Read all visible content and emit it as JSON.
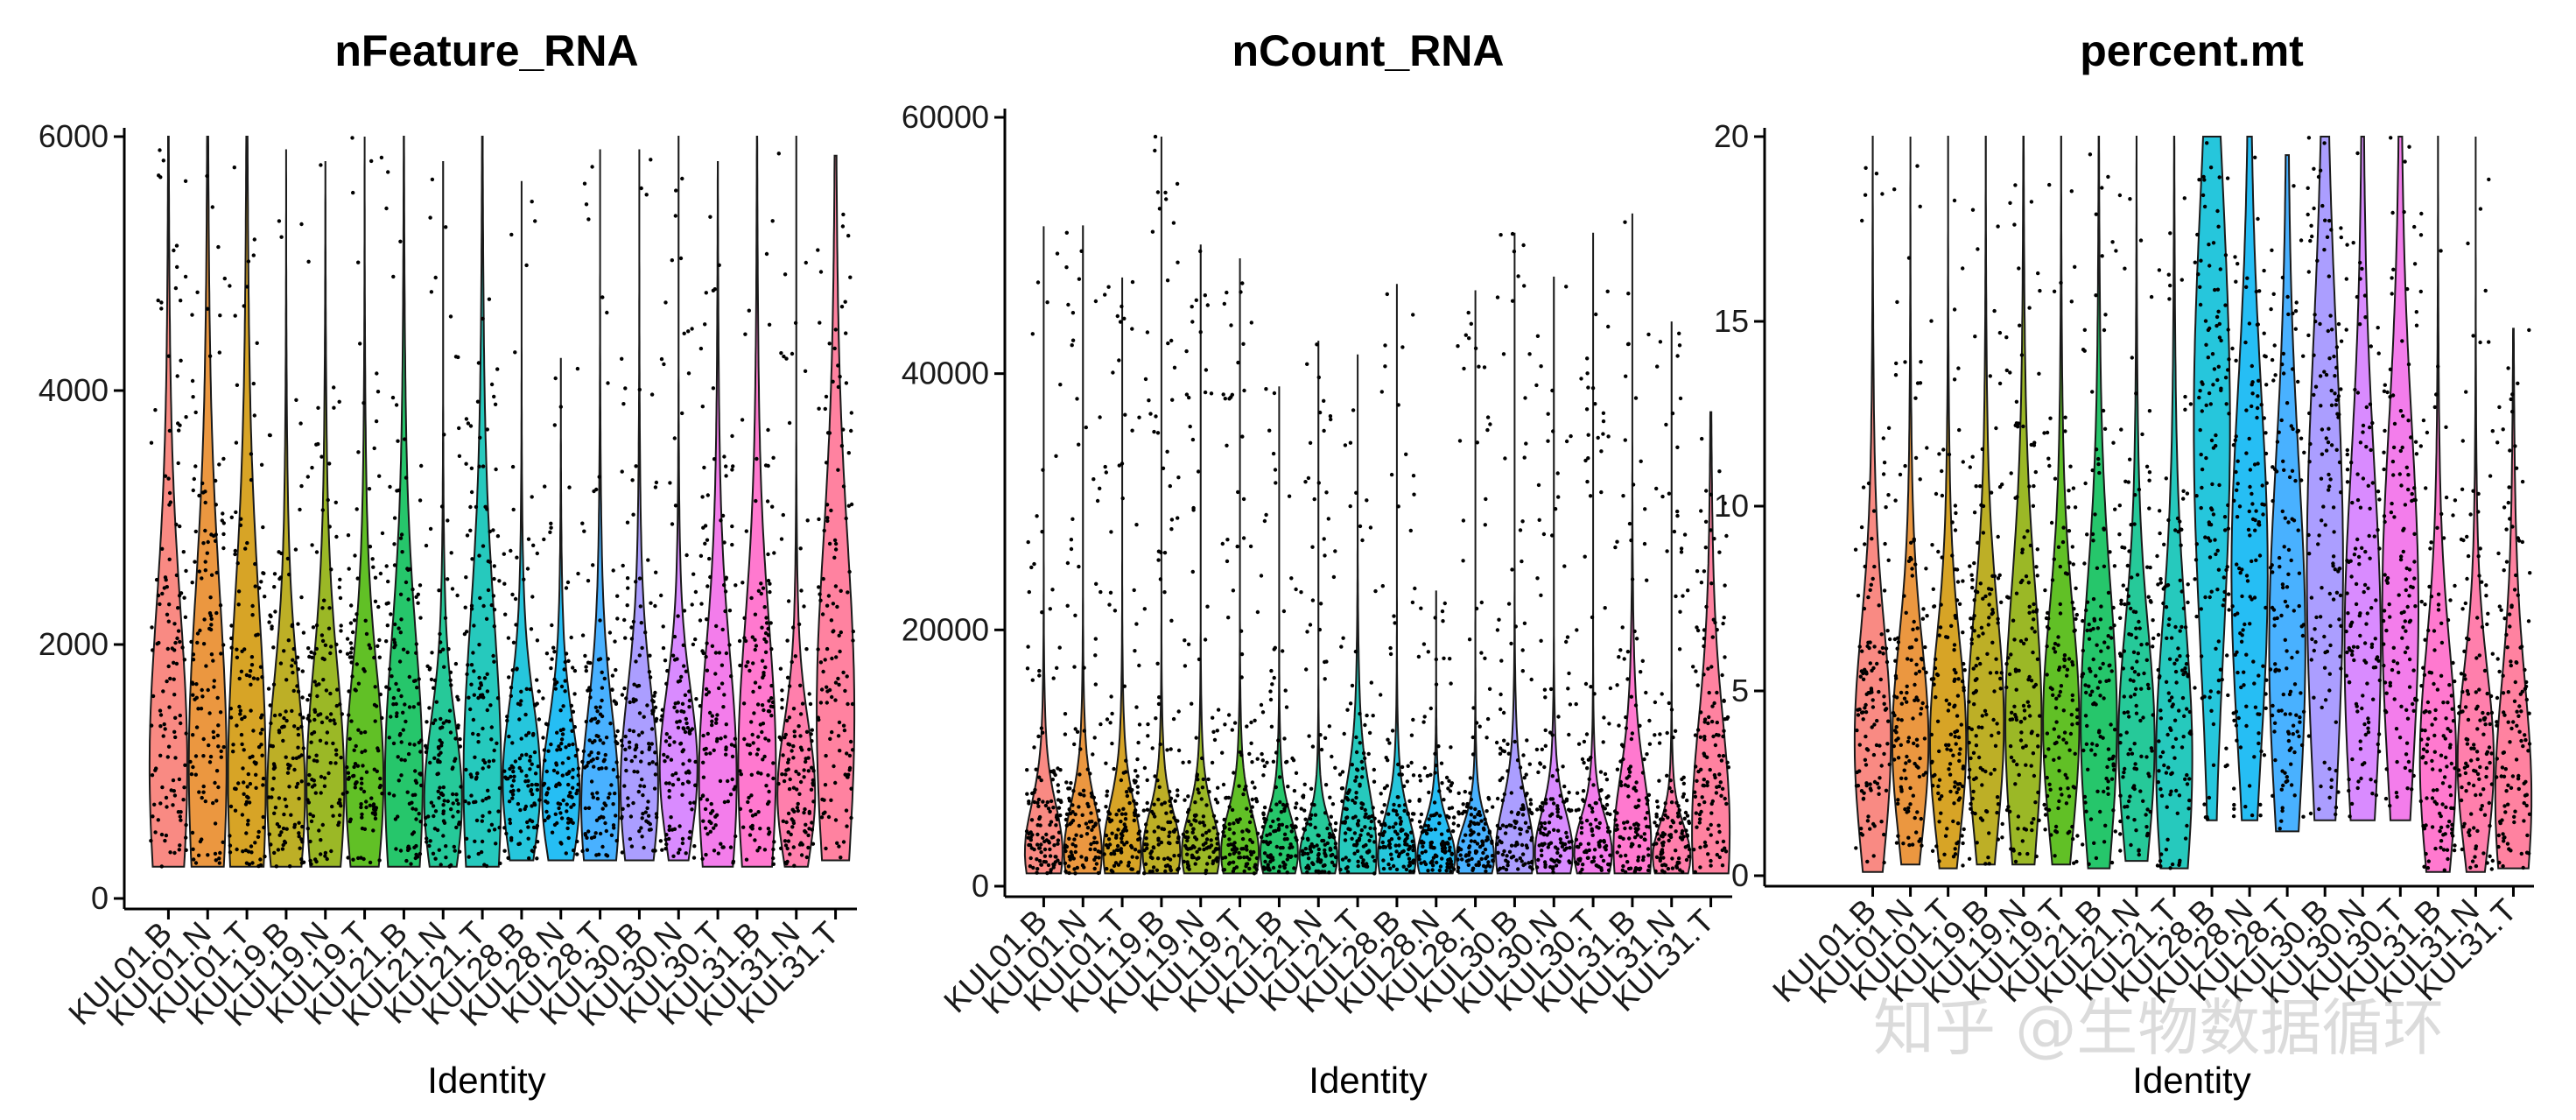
{
  "chart_data": [
    {
      "type": "violin",
      "title": "nFeature_RNA",
      "xlabel": "Identity",
      "ylabel": "",
      "ylim": [
        0,
        6000
      ],
      "yticks": [
        0,
        2000,
        4000,
        6000
      ],
      "categories": [
        "KUL01.B",
        "KUL01.N",
        "KUL01.T",
        "KUL19.B",
        "KUL19.N",
        "KUL19.T",
        "KUL21.B",
        "KUL21.N",
        "KUL21.T",
        "KUL28.B",
        "KUL28.N",
        "KUL28.T",
        "KUL30.B",
        "KUL30.N",
        "KUL30.T",
        "KUL31.B",
        "KUL31.N",
        "KUL31.T"
      ],
      "colors": [
        "#F8766D",
        "#E7851E",
        "#D09400",
        "#B2A100",
        "#89AC00",
        "#45B500",
        "#00BC51",
        "#00C087",
        "#00C0B2",
        "#00BCD6",
        "#00B3F2",
        "#29A3FF",
        "#9C8DFF",
        "#D277FF",
        "#F166E8",
        "#FF61C7",
        "#FF689E",
        "#FF6C8F"
      ],
      "series": [
        {
          "name": "KUL01.B",
          "min": 250,
          "median": 1000,
          "q3": 2000,
          "max": 6000,
          "peak": 1000
        },
        {
          "name": "KUL01.N",
          "min": 250,
          "median": 1100,
          "q3": 2200,
          "max": 6000,
          "peak": 1000
        },
        {
          "name": "KUL01.T",
          "min": 250,
          "median": 1200,
          "q3": 2300,
          "max": 6000,
          "peak": 900
        },
        {
          "name": "KUL19.B",
          "min": 250,
          "median": 900,
          "q3": 1600,
          "max": 5900,
          "peak": 800
        },
        {
          "name": "KUL19.N",
          "min": 250,
          "median": 950,
          "q3": 1700,
          "max": 5800,
          "peak": 850
        },
        {
          "name": "KUL19.T",
          "min": 250,
          "median": 1000,
          "q3": 1700,
          "max": 6000,
          "peak": 900
        },
        {
          "name": "KUL21.B",
          "min": 250,
          "median": 1000,
          "q3": 1900,
          "max": 6000,
          "peak": 900
        },
        {
          "name": "KUL21.N",
          "min": 250,
          "median": 800,
          "q3": 1300,
          "max": 5800,
          "peak": 750
        },
        {
          "name": "KUL21.T",
          "min": 250,
          "median": 1000,
          "q3": 2000,
          "max": 6000,
          "peak": 900
        },
        {
          "name": "KUL28.B",
          "min": 300,
          "median": 900,
          "q3": 1400,
          "max": 5650,
          "peak": 900
        },
        {
          "name": "KUL28.N",
          "min": 300,
          "median": 850,
          "q3": 1300,
          "max": 4250,
          "peak": 800
        },
        {
          "name": "KUL28.T",
          "min": 300,
          "median": 800,
          "q3": 1400,
          "max": 5900,
          "peak": 700
        },
        {
          "name": "KUL30.B",
          "min": 300,
          "median": 900,
          "q3": 1500,
          "max": 5900,
          "peak": 850
        },
        {
          "name": "KUL30.N",
          "min": 300,
          "median": 1000,
          "q3": 1500,
          "max": 6000,
          "peak": 1000
        },
        {
          "name": "KUL30.T",
          "min": 250,
          "median": 1000,
          "q3": 1800,
          "max": 5800,
          "peak": 900
        },
        {
          "name": "KUL31.B",
          "min": 250,
          "median": 1100,
          "q3": 2000,
          "max": 6000,
          "peak": 1000
        },
        {
          "name": "KUL31.N",
          "min": 250,
          "median": 850,
          "q3": 1300,
          "max": 6000,
          "peak": 800
        },
        {
          "name": "KUL31.T",
          "min": 300,
          "median": 1500,
          "q3": 2600,
          "max": 5850,
          "peak": 1400
        }
      ]
    },
    {
      "type": "violin",
      "title": "nCount_RNA",
      "xlabel": "Identity",
      "ylabel": "",
      "ylim": [
        0,
        60000
      ],
      "yticks": [
        0,
        20000,
        40000,
        60000
      ],
      "categories": [
        "KUL01.B",
        "KUL01.N",
        "KUL01.T",
        "KUL19.B",
        "KUL19.N",
        "KUL19.T",
        "KUL21.B",
        "KUL21.N",
        "KUL21.T",
        "KUL28.B",
        "KUL28.N",
        "KUL28.T",
        "KUL30.B",
        "KUL30.N",
        "KUL30.T",
        "KUL31.B",
        "KUL31.N",
        "KUL31.T"
      ],
      "colors": [
        "#F8766D",
        "#E7851E",
        "#D09400",
        "#B2A100",
        "#89AC00",
        "#45B500",
        "#00BC51",
        "#00C087",
        "#00C0B2",
        "#00BCD6",
        "#00B3F2",
        "#29A3FF",
        "#9C8DFF",
        "#D277FF",
        "#F166E8",
        "#FF61C7",
        "#FF689E",
        "#FF6C8F"
      ],
      "series": [
        {
          "name": "KUL01.B",
          "min": 1000,
          "median": 3000,
          "q3": 6000,
          "max": 51500,
          "peak": 2500
        },
        {
          "name": "KUL01.N",
          "min": 1000,
          "median": 3000,
          "q3": 6000,
          "max": 51500,
          "peak": 2500
        },
        {
          "name": "KUL01.T",
          "min": 1000,
          "median": 3000,
          "q3": 6000,
          "max": 47500,
          "peak": 2500
        },
        {
          "name": "KUL19.B",
          "min": 1000,
          "median": 3000,
          "q3": 5500,
          "max": 58500,
          "peak": 2500
        },
        {
          "name": "KUL19.N",
          "min": 1000,
          "median": 3000,
          "q3": 5500,
          "max": 50000,
          "peak": 2500
        },
        {
          "name": "KUL19.T",
          "min": 1000,
          "median": 3000,
          "q3": 5500,
          "max": 49000,
          "peak": 2500
        },
        {
          "name": "KUL21.B",
          "min": 1000,
          "median": 2800,
          "q3": 5000,
          "max": 39000,
          "peak": 2500
        },
        {
          "name": "KUL21.N",
          "min": 1000,
          "median": 2500,
          "q3": 4000,
          "max": 42500,
          "peak": 2200
        },
        {
          "name": "KUL21.T",
          "min": 1000,
          "median": 3200,
          "q3": 7000,
          "max": 41500,
          "peak": 2500
        },
        {
          "name": "KUL28.B",
          "min": 1000,
          "median": 2500,
          "q3": 5000,
          "max": 47000,
          "peak": 2200
        },
        {
          "name": "KUL28.N",
          "min": 1000,
          "median": 2500,
          "q3": 4000,
          "max": 23000,
          "peak": 2200
        },
        {
          "name": "KUL28.T",
          "min": 1000,
          "median": 2500,
          "q3": 4000,
          "max": 46500,
          "peak": 2200
        },
        {
          "name": "KUL30.B",
          "min": 1000,
          "median": 3000,
          "q3": 6000,
          "max": 51000,
          "peak": 2500
        },
        {
          "name": "KUL30.N",
          "min": 1000,
          "median": 3000,
          "q3": 5500,
          "max": 47500,
          "peak": 2500
        },
        {
          "name": "KUL30.T",
          "min": 1000,
          "median": 2800,
          "q3": 5000,
          "max": 51000,
          "peak": 2500
        },
        {
          "name": "KUL31.B",
          "min": 1000,
          "median": 3500,
          "q3": 8000,
          "max": 52500,
          "peak": 2800
        },
        {
          "name": "KUL31.N",
          "min": 1000,
          "median": 2500,
          "q3": 4000,
          "max": 44000,
          "peak": 2200
        },
        {
          "name": "KUL31.T",
          "min": 1000,
          "median": 5000,
          "q3": 12000,
          "max": 37000,
          "peak": 4000
        }
      ]
    },
    {
      "type": "violin",
      "title": "percent.mt",
      "xlabel": "Identity",
      "ylabel": "",
      "ylim": [
        0,
        20
      ],
      "yticks": [
        0,
        5,
        10,
        15,
        20
      ],
      "categories": [
        "KUL01.B",
        "KUL01.N",
        "KUL01.T",
        "KUL19.B",
        "KUL19.N",
        "KUL19.T",
        "KUL21.B",
        "KUL21.N",
        "KUL21.T",
        "KUL28.B",
        "KUL28.N",
        "KUL28.T",
        "KUL30.B",
        "KUL30.N",
        "KUL30.T",
        "KUL31.B",
        "KUL31.N",
        "KUL31.T"
      ],
      "colors": [
        "#F8766D",
        "#E7851E",
        "#D09400",
        "#B2A100",
        "#89AC00",
        "#45B500",
        "#00BC51",
        "#00C087",
        "#00C0B2",
        "#00BCD6",
        "#00B3F2",
        "#29A3FF",
        "#9C8DFF",
        "#D277FF",
        "#F166E8",
        "#FF61C7",
        "#FF689E",
        "#FF6C8F"
      ],
      "series": [
        {
          "name": "KUL01.B",
          "min": 0.1,
          "median": 3.5,
          "q3": 6,
          "max": 20,
          "peak": 3.5
        },
        {
          "name": "KUL01.N",
          "min": 0.3,
          "median": 3.8,
          "q3": 6,
          "max": 20,
          "peak": 3.5
        },
        {
          "name": "KUL01.T",
          "min": 0.2,
          "median": 3.8,
          "q3": 6,
          "max": 20,
          "peak": 3.5
        },
        {
          "name": "KUL19.B",
          "min": 0.3,
          "median": 4,
          "q3": 6.5,
          "max": 20,
          "peak": 4
        },
        {
          "name": "KUL19.N",
          "min": 0.3,
          "median": 4,
          "q3": 7,
          "max": 20,
          "peak": 4
        },
        {
          "name": "KUL19.T",
          "min": 0.3,
          "median": 4,
          "q3": 6.5,
          "max": 20,
          "peak": 4
        },
        {
          "name": "KUL21.B",
          "min": 0.2,
          "median": 4,
          "q3": 7,
          "max": 20,
          "peak": 4
        },
        {
          "name": "KUL21.N",
          "min": 0.4,
          "median": 3.5,
          "q3": 6,
          "max": 20,
          "peak": 3.5
        },
        {
          "name": "KUL21.T",
          "min": 0.2,
          "median": 3,
          "q3": 6,
          "max": 20,
          "peak": 3
        },
        {
          "name": "KUL28.B",
          "min": 1.5,
          "median": 10,
          "q3": 15,
          "max": 20,
          "peak": 12
        },
        {
          "name": "KUL28.N",
          "min": 1.5,
          "median": 8,
          "q3": 12,
          "max": 20,
          "peak": 8
        },
        {
          "name": "KUL28.T",
          "min": 1.2,
          "median": 6,
          "q3": 10,
          "max": 19.5,
          "peak": 6
        },
        {
          "name": "KUL30.B",
          "min": 1.5,
          "median": 8,
          "q3": 13,
          "max": 20,
          "peak": 8
        },
        {
          "name": "KUL30.N",
          "min": 1.5,
          "median": 6,
          "q3": 10,
          "max": 20,
          "peak": 6
        },
        {
          "name": "KUL30.T",
          "min": 1.5,
          "median": 7,
          "q3": 11,
          "max": 20,
          "peak": 7
        },
        {
          "name": "KUL31.B",
          "min": 0.1,
          "median": 3,
          "q3": 5.5,
          "max": 20,
          "peak": 3
        },
        {
          "name": "KUL31.N",
          "min": 0.1,
          "median": 3,
          "q3": 5,
          "max": 20,
          "peak": 3
        },
        {
          "name": "KUL31.T",
          "min": 0.2,
          "median": 2.5,
          "q3": 5,
          "max": 14.8,
          "peak": 2
        }
      ]
    }
  ],
  "watermark": "知乎 @生物数据循环"
}
